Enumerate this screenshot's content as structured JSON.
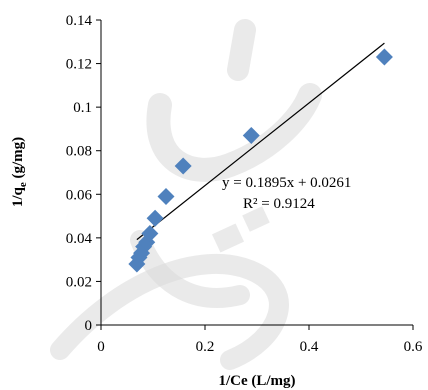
{
  "chart_data": {
    "type": "scatter",
    "title": "",
    "xlabel": "1/Ce (L/mg)",
    "ylabel": {
      "main": "1/q",
      "subscript": "e",
      "suffix": " (g/mg)"
    },
    "xlim": [
      0,
      0.6
    ],
    "ylim": [
      0,
      0.14
    ],
    "x_ticks": [
      0,
      0.2,
      0.4,
      0.6
    ],
    "x_tick_labels": [
      "0",
      "0.2",
      "0.4",
      "0.6"
    ],
    "y_ticks": [
      0,
      0.02,
      0.04,
      0.06,
      0.08,
      0.1,
      0.12,
      0.14
    ],
    "y_tick_labels": [
      "0",
      "0.02",
      "0.04",
      "0.06",
      "0.08",
      "0.1",
      "0.12",
      "0.14"
    ],
    "grid": false,
    "legend": "none",
    "marker": "diamond",
    "marker_color": "#4f81bd",
    "series": [
      {
        "x": [
          0.069,
          0.073,
          0.078,
          0.082,
          0.088,
          0.094,
          0.104,
          0.125,
          0.158,
          0.289,
          0.545
        ],
        "y": [
          0.028,
          0.031,
          0.033,
          0.036,
          0.038,
          0.042,
          0.049,
          0.059,
          0.073,
          0.087,
          0.123
        ]
      }
    ],
    "trendline": {
      "slope": 0.1895,
      "intercept": 0.0261,
      "x_range": [
        0.069,
        0.545
      ],
      "color": "#000000",
      "equation_label": "y = 0.1895x + 0.0261",
      "r2_label": "R² = 0.9124"
    }
  }
}
